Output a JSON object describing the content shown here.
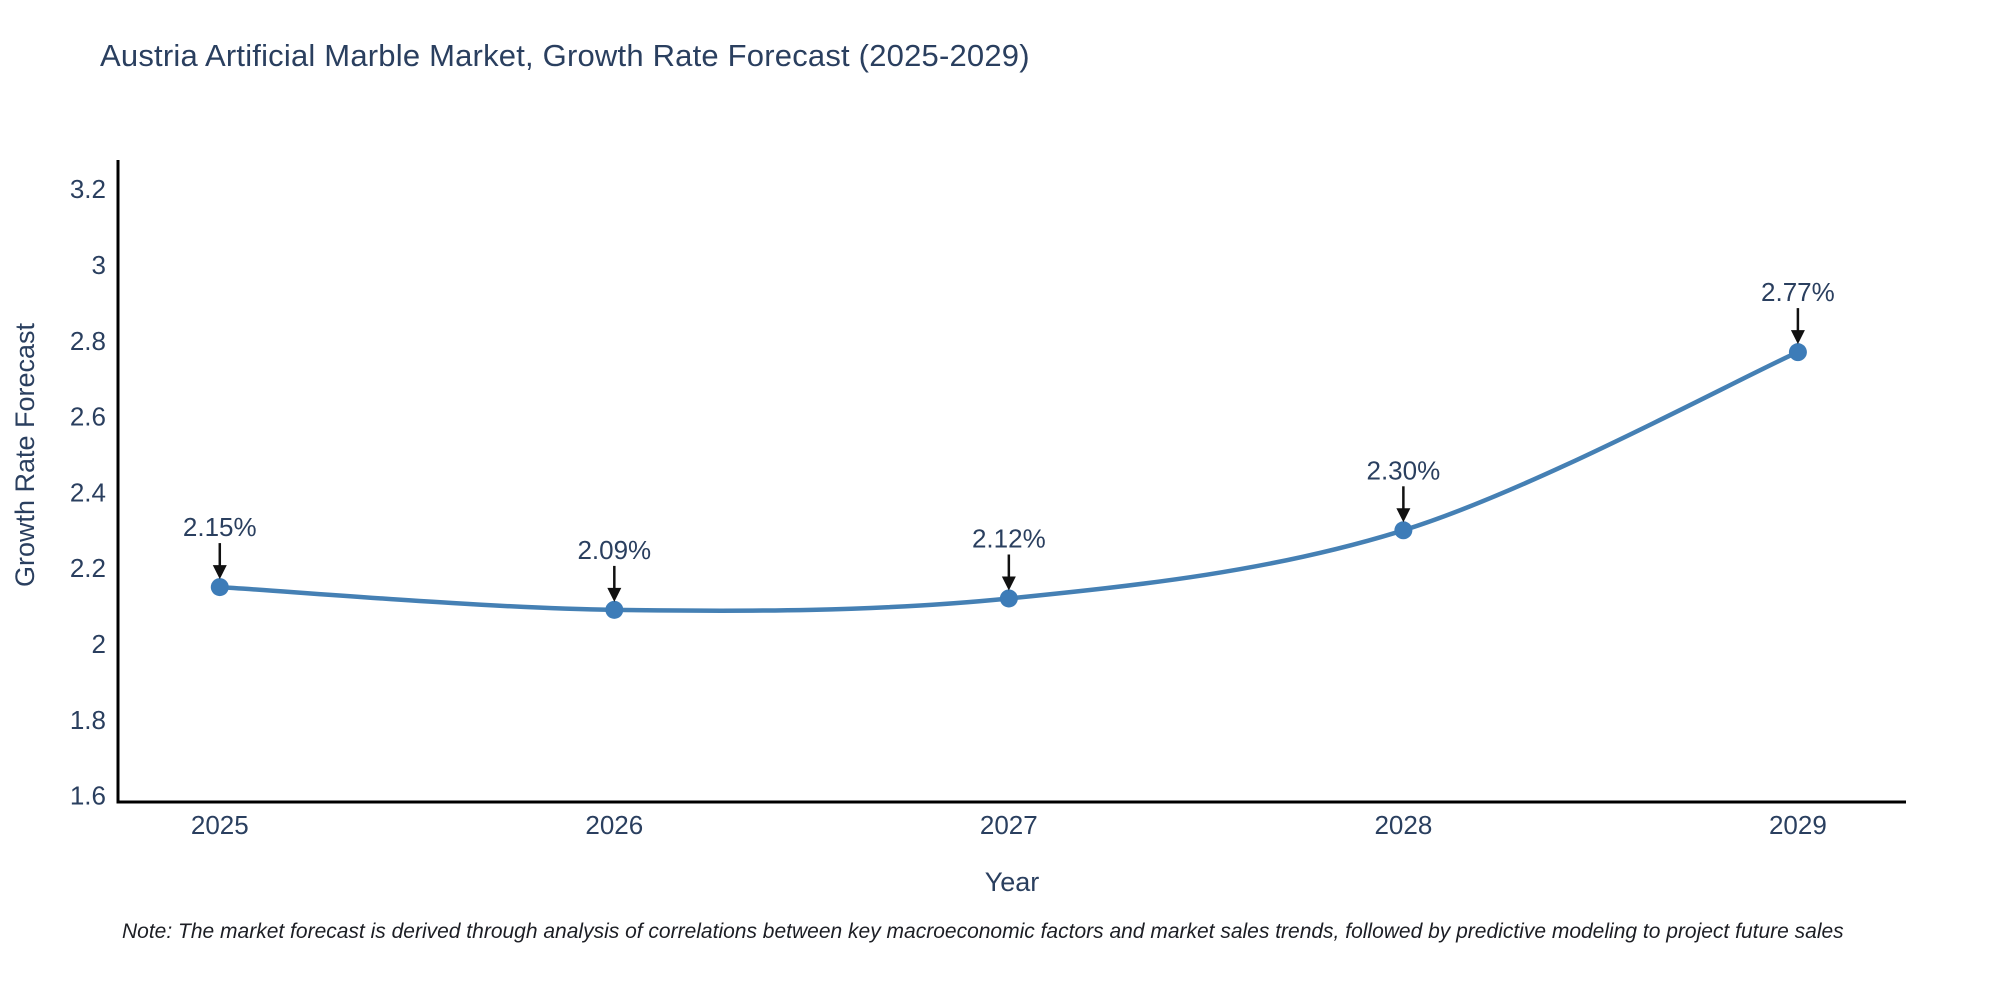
{
  "page": {
    "background": "#ffffff"
  },
  "note": "Note: The market forecast is derived through analysis of correlations between key macroeconomic factors and market sales trends, followed by predictive modeling to project future sales",
  "chart_data": {
    "type": "line",
    "title": "Austria Artificial Marble Market, Growth Rate Forecast (2025-2029)",
    "xlabel": "Year",
    "ylabel": "Growth Rate Forecast",
    "x": [
      2025,
      2026,
      2027,
      2028,
      2029
    ],
    "values": [
      2.15,
      2.09,
      2.12,
      2.3,
      2.77
    ],
    "point_labels": [
      "2.15%",
      "2.09%",
      "2.12%",
      "2.30%",
      "2.77%"
    ],
    "xtick_labels": [
      "2025",
      "2026",
      "2027",
      "2028",
      "2029"
    ],
    "yticks": [
      1.6,
      1.8,
      2,
      2.2,
      2.4,
      2.6,
      2.8,
      3,
      3.2
    ],
    "ytick_labels": [
      "1.6",
      "1.8",
      "2",
      "2.2",
      "2.4",
      "2.6",
      "2.8",
      "3",
      "3.2"
    ],
    "xlim": [
      2024.742,
      2029.274
    ],
    "ylim": [
      1.583,
      3.277
    ],
    "grid": false,
    "legend": "none",
    "line_shape": "spline",
    "colors": {
      "line": "#4580b4",
      "marker": "#3d7cb8",
      "arrow": "#111111",
      "text": "#2a3f5f",
      "axis": "#000000",
      "note_text": "#1c1e24"
    }
  }
}
